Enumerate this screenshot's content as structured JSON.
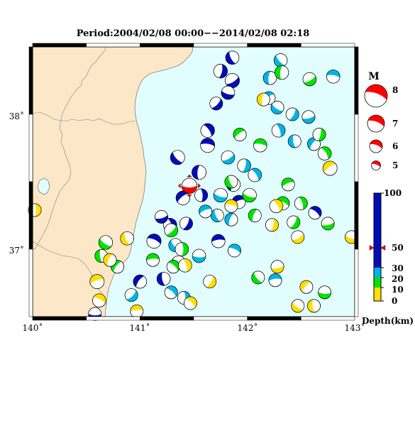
{
  "title": "Period:2004/02/08 00:00−−2014/02/08 02:18",
  "map": {
    "lon_min": 140,
    "lon_max": 143,
    "lat_min": 36.5,
    "lat_max": 38.5,
    "lon_ticks": [
      "140˚",
      "141˚",
      "142˚",
      "143˚"
    ],
    "lat_ticks": [
      "38˚",
      "37˚"
    ],
    "land_color": "#fce7c9",
    "sea_color": "#e2fdfe",
    "coast_color": "#808080"
  },
  "magnitude_legend": {
    "title": "M",
    "labels": [
      "8",
      "7",
      "6",
      "5"
    ],
    "color": "#ff0000"
  },
  "depth_scale": {
    "title": "Depth(km)",
    "tick_labels": [
      "100",
      "50",
      "30",
      "20",
      "10",
      "0"
    ],
    "colors": {
      "shallow": "#ffde00",
      "d10": "#00e400",
      "d20": "#00b4e6",
      "d30": "#00b4e6",
      "deep": "#000db7"
    },
    "marker_value": 50
  },
  "chart_data": {
    "type": "scatter",
    "x_label": "",
    "y_label": "",
    "xlim": [
      140,
      143
    ],
    "ylim": [
      36.5,
      38.5
    ],
    "events": [
      {
        "lon": 141.46,
        "lat": 37.47,
        "mag": 6,
        "depth": 50,
        "color": "#ff0000",
        "latest": true
      },
      {
        "lon": 141.35,
        "lat": 37.68,
        "mag": 5.8,
        "depth": 60,
        "color": "#000db7"
      },
      {
        "lon": 141.55,
        "lat": 37.57,
        "mag": 5.8,
        "depth": 60,
        "color": "#000db7"
      },
      {
        "lon": 141.4,
        "lat": 37.38,
        "mag": 5.7,
        "depth": 60,
        "color": "#000db7"
      },
      {
        "lon": 141.63,
        "lat": 37.77,
        "mag": 5.8,
        "depth": 60,
        "color": "#000db7"
      },
      {
        "lon": 141.63,
        "lat": 37.88,
        "mag": 5.7,
        "depth": 60,
        "color": "#000db7"
      },
      {
        "lon": 141.75,
        "lat": 38.32,
        "mag": 5.7,
        "depth": 60,
        "color": "#000db7"
      },
      {
        "lon": 141.86,
        "lat": 38.25,
        "mag": 5.8,
        "depth": 60,
        "color": "#000db7"
      },
      {
        "lon": 141.82,
        "lat": 38.16,
        "mag": 5.6,
        "depth": 60,
        "color": "#000db7"
      },
      {
        "lon": 141.86,
        "lat": 38.42,
        "mag": 5.6,
        "depth": 60,
        "color": "#000db7"
      },
      {
        "lon": 141.87,
        "lat": 37.48,
        "mag": 5.7,
        "depth": 60,
        "color": "#000db7"
      },
      {
        "lon": 141.92,
        "lat": 37.35,
        "mag": 5.6,
        "depth": 60,
        "color": "#000db7"
      },
      {
        "lon": 141.13,
        "lat": 37.06,
        "mag": 5.8,
        "depth": 60,
        "color": "#000db7"
      },
      {
        "lon": 141.28,
        "lat": 37.18,
        "mag": 5.6,
        "depth": 60,
        "color": "#000db7"
      },
      {
        "lon": 141.43,
        "lat": 37.19,
        "mag": 5.5,
        "depth": 60,
        "color": "#000db7"
      },
      {
        "lon": 141.2,
        "lat": 37.24,
        "mag": 5.5,
        "depth": 60,
        "color": "#000db7"
      },
      {
        "lon": 141.36,
        "lat": 36.9,
        "mag": 5.7,
        "depth": 60,
        "color": "#000db7"
      },
      {
        "lon": 141.22,
        "lat": 36.78,
        "mag": 5.6,
        "depth": 60,
        "color": "#000db7"
      },
      {
        "lon": 141.0,
        "lat": 36.76,
        "mag": 5.6,
        "depth": 60,
        "color": "#000db7"
      },
      {
        "lon": 141.73,
        "lat": 37.06,
        "mag": 5.6,
        "depth": 60,
        "color": "#000db7"
      },
      {
        "lon": 142.63,
        "lat": 37.27,
        "mag": 5.5,
        "depth": 60,
        "color": "#000db7"
      },
      {
        "lon": 141.57,
        "lat": 37.4,
        "mag": 5.5,
        "depth": 60,
        "color": "#000db7"
      },
      {
        "lon": 141.71,
        "lat": 38.08,
        "mag": 5.5,
        "depth": 60,
        "color": "#000db7"
      },
      {
        "lon": 140.58,
        "lat": 36.52,
        "mag": 5.5,
        "depth": 60,
        "color": "#000db7"
      },
      {
        "lon": 142.31,
        "lat": 38.4,
        "mag": 5.6,
        "depth": 25,
        "color": "#00b4e6"
      },
      {
        "lon": 142.21,
        "lat": 38.27,
        "mag": 5.6,
        "depth": 25,
        "color": "#00b4e6"
      },
      {
        "lon": 142.2,
        "lat": 38.12,
        "mag": 5.5,
        "depth": 25,
        "color": "#00b4e6"
      },
      {
        "lon": 142.8,
        "lat": 38.28,
        "mag": 5.6,
        "depth": 25,
        "color": "#00b4e6"
      },
      {
        "lon": 142.07,
        "lat": 37.55,
        "mag": 5.6,
        "depth": 25,
        "color": "#00b4e6"
      },
      {
        "lon": 141.97,
        "lat": 37.62,
        "mag": 5.6,
        "depth": 25,
        "color": "#00b4e6"
      },
      {
        "lon": 141.82,
        "lat": 37.68,
        "mag": 5.6,
        "depth": 25,
        "color": "#00b4e6"
      },
      {
        "lon": 141.75,
        "lat": 37.4,
        "mag": 5.7,
        "depth": 25,
        "color": "#00b4e6"
      },
      {
        "lon": 141.72,
        "lat": 37.25,
        "mag": 5.5,
        "depth": 25,
        "color": "#00b4e6"
      },
      {
        "lon": 141.85,
        "lat": 37.22,
        "mag": 5.5,
        "depth": 25,
        "color": "#00b4e6"
      },
      {
        "lon": 141.61,
        "lat": 37.28,
        "mag": 5.5,
        "depth": 25,
        "color": "#00b4e6"
      },
      {
        "lon": 141.88,
        "lat": 36.99,
        "mag": 5.5,
        "depth": 25,
        "color": "#00b4e6"
      },
      {
        "lon": 142.29,
        "lat": 37.88,
        "mag": 5.6,
        "depth": 25,
        "color": "#00b4e6"
      },
      {
        "lon": 142.42,
        "lat": 38.0,
        "mag": 5.5,
        "depth": 25,
        "color": "#00b4e6"
      },
      {
        "lon": 142.57,
        "lat": 37.98,
        "mag": 5.5,
        "depth": 25,
        "color": "#00b4e6"
      },
      {
        "lon": 142.28,
        "lat": 38.05,
        "mag": 5.5,
        "depth": 25,
        "color": "#00b4e6"
      },
      {
        "lon": 142.44,
        "lat": 37.8,
        "mag": 5.5,
        "depth": 25,
        "color": "#00b4e6"
      },
      {
        "lon": 142.62,
        "lat": 37.78,
        "mag": 5.5,
        "depth": 25,
        "color": "#00b4e6"
      },
      {
        "lon": 142.26,
        "lat": 36.77,
        "mag": 5.5,
        "depth": 25,
        "color": "#00b4e6"
      },
      {
        "lon": 141.29,
        "lat": 36.68,
        "mag": 5.5,
        "depth": 25,
        "color": "#00b4e6"
      },
      {
        "lon": 141.41,
        "lat": 36.64,
        "mag": 5.5,
        "depth": 25,
        "color": "#00b4e6"
      },
      {
        "lon": 140.92,
        "lat": 36.66,
        "mag": 5.5,
        "depth": 25,
        "color": "#00b4e6"
      },
      {
        "lon": 141.55,
        "lat": 36.95,
        "mag": 5.6,
        "depth": 25,
        "color": "#00b4e6"
      },
      {
        "lon": 141.33,
        "lat": 37.03,
        "mag": 5.6,
        "depth": 25,
        "color": "#00b4e6"
      },
      {
        "lon": 142.32,
        "lat": 38.31,
        "mag": 5.7,
        "depth": 15,
        "color": "#00e400"
      },
      {
        "lon": 141.93,
        "lat": 37.85,
        "mag": 5.5,
        "depth": 15,
        "color": "#00e400"
      },
      {
        "lon": 142.12,
        "lat": 37.77,
        "mag": 5.6,
        "depth": 15,
        "color": "#00e400"
      },
      {
        "lon": 142.72,
        "lat": 37.71,
        "mag": 5.6,
        "depth": 15,
        "color": "#00e400"
      },
      {
        "lon": 142.67,
        "lat": 37.85,
        "mag": 5.5,
        "depth": 15,
        "color": "#00e400"
      },
      {
        "lon": 142.58,
        "lat": 38.26,
        "mag": 5.6,
        "depth": 15,
        "color": "#00e400"
      },
      {
        "lon": 142.02,
        "lat": 37.4,
        "mag": 5.7,
        "depth": 15,
        "color": "#00e400"
      },
      {
        "lon": 141.85,
        "lat": 37.5,
        "mag": 5.5,
        "depth": 15,
        "color": "#00e400"
      },
      {
        "lon": 142.07,
        "lat": 37.25,
        "mag": 5.5,
        "depth": 15,
        "color": "#00e400"
      },
      {
        "lon": 142.38,
        "lat": 37.48,
        "mag": 5.5,
        "depth": 15,
        "color": "#00e400"
      },
      {
        "lon": 142.33,
        "lat": 37.34,
        "mag": 5.6,
        "depth": 15,
        "color": "#00e400"
      },
      {
        "lon": 142.5,
        "lat": 37.34,
        "mag": 5.5,
        "depth": 15,
        "color": "#00e400"
      },
      {
        "lon": 142.43,
        "lat": 37.2,
        "mag": 5.5,
        "depth": 15,
        "color": "#00e400"
      },
      {
        "lon": 142.75,
        "lat": 37.19,
        "mag": 5.5,
        "depth": 15,
        "color": "#00e400"
      },
      {
        "lon": 140.68,
        "lat": 37.05,
        "mag": 5.7,
        "depth": 15,
        "color": "#00e400"
      },
      {
        "lon": 140.64,
        "lat": 36.95,
        "mag": 5.5,
        "depth": 15,
        "color": "#00e400"
      },
      {
        "lon": 140.79,
        "lat": 36.87,
        "mag": 5.5,
        "depth": 15,
        "color": "#00e400"
      },
      {
        "lon": 141.12,
        "lat": 36.92,
        "mag": 5.5,
        "depth": 15,
        "color": "#00e400"
      },
      {
        "lon": 141.31,
        "lat": 36.87,
        "mag": 5.5,
        "depth": 15,
        "color": "#00e400"
      },
      {
        "lon": 141.39,
        "lat": 37.0,
        "mag": 5.6,
        "depth": 15,
        "color": "#00e400"
      },
      {
        "lon": 141.29,
        "lat": 37.14,
        "mag": 5.6,
        "depth": 15,
        "color": "#00e400"
      },
      {
        "lon": 142.72,
        "lat": 36.68,
        "mag": 5.5,
        "depth": 15,
        "color": "#00e400"
      },
      {
        "lon": 142.1,
        "lat": 36.79,
        "mag": 5.5,
        "depth": 15,
        "color": "#00e400"
      },
      {
        "lon": 142.15,
        "lat": 38.11,
        "mag": 5.5,
        "depth": 5,
        "color": "#ffde00"
      },
      {
        "lon": 142.77,
        "lat": 37.6,
        "mag": 5.8,
        "depth": 5,
        "color": "#ffde00"
      },
      {
        "lon": 141.85,
        "lat": 37.32,
        "mag": 5.5,
        "depth": 5,
        "color": "#ffde00"
      },
      {
        "lon": 142.27,
        "lat": 37.32,
        "mag": 5.6,
        "depth": 5,
        "color": "#ffde00"
      },
      {
        "lon": 142.23,
        "lat": 37.18,
        "mag": 5.5,
        "depth": 5,
        "color": "#ffde00"
      },
      {
        "lon": 142.47,
        "lat": 37.09,
        "mag": 5.5,
        "depth": 5,
        "color": "#ffde00"
      },
      {
        "lon": 142.97,
        "lat": 37.09,
        "mag": 5.5,
        "depth": 5,
        "color": "#ffde00"
      },
      {
        "lon": 140.88,
        "lat": 37.08,
        "mag": 5.6,
        "depth": 5,
        "color": "#ffde00"
      },
      {
        "lon": 140.72,
        "lat": 36.92,
        "mag": 5.5,
        "depth": 5,
        "color": "#ffde00"
      },
      {
        "lon": 140.6,
        "lat": 36.76,
        "mag": 5.8,
        "depth": 5,
        "color": "#ffde00"
      },
      {
        "lon": 140.62,
        "lat": 36.62,
        "mag": 5.6,
        "depth": 5,
        "color": "#ffde00"
      },
      {
        "lon": 141.42,
        "lat": 36.88,
        "mag": 5.6,
        "depth": 5,
        "color": "#ffde00"
      },
      {
        "lon": 141.65,
        "lat": 36.76,
        "mag": 5.5,
        "depth": 5,
        "color": "#ffde00"
      },
      {
        "lon": 142.28,
        "lat": 36.87,
        "mag": 5.5,
        "depth": 5,
        "color": "#ffde00"
      },
      {
        "lon": 142.47,
        "lat": 36.58,
        "mag": 5.5,
        "depth": 5,
        "color": "#ffde00"
      },
      {
        "lon": 142.62,
        "lat": 36.58,
        "mag": 5.5,
        "depth": 5,
        "color": "#ffde00"
      },
      {
        "lon": 142.55,
        "lat": 36.72,
        "mag": 5.5,
        "depth": 5,
        "color": "#ffde00"
      },
      {
        "lon": 140.97,
        "lat": 36.54,
        "mag": 5.5,
        "depth": 5,
        "color": "#ffde00"
      },
      {
        "lon": 141.47,
        "lat": 36.6,
        "mag": 5.5,
        "depth": 5,
        "color": "#ffde00"
      },
      {
        "lon": 140.02,
        "lat": 37.29,
        "mag": 5.5,
        "depth": 5,
        "color": "#ffde00"
      }
    ]
  }
}
